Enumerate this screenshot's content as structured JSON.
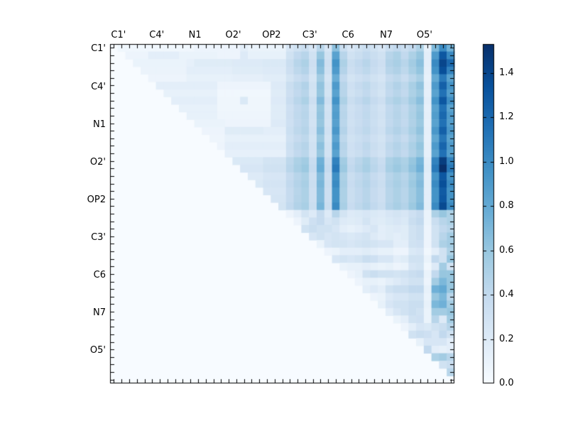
{
  "chart_data": {
    "type": "heatmap",
    "n": 45,
    "group_labels": [
      "C1'",
      "C4'",
      "N1",
      "O2'",
      "OP2",
      "C3'",
      "C6",
      "N7",
      "O5'"
    ],
    "label_positions": [
      1,
      6,
      11,
      16,
      21,
      26,
      31,
      36,
      41
    ],
    "vmin": 0.0,
    "vmax": 1.53,
    "colormap": "Blues",
    "colormap_anchors": [
      "#f7fbff",
      "#deebf7",
      "#c6dbef",
      "#9ecae1",
      "#6baed6",
      "#4292c6",
      "#2171b5",
      "#08519c",
      "#08306b"
    ],
    "frame_color": "#000000",
    "background_color": "#ffffff",
    "colorbar_ticks": [
      0.0,
      0.2,
      0.4,
      0.6,
      0.8,
      1.0,
      1.2,
      1.4
    ],
    "colorbar_tick_labels": [
      "0.0",
      "0.2",
      "0.4",
      "0.6",
      "0.8",
      "1.0",
      "1.2",
      "1.4"
    ],
    "legend_position": "right-colorbar",
    "grid": false,
    "rows": [
      {
        "start": 1,
        "values": [
          0.05,
          0.05,
          0.05,
          0.05,
          0.05,
          0.05,
          0.05,
          0.05,
          0.05,
          0.05,
          0.08,
          0.08,
          0.08,
          0.08,
          0.08,
          0.08,
          0.15,
          0.1,
          0.1,
          0.1,
          0.1,
          0.1,
          0.25,
          0.3,
          0.35,
          0.25,
          0.45,
          0.25,
          0.65,
          0.35,
          0.25,
          0.3,
          0.35,
          0.3,
          0.25,
          0.35,
          0.4,
          0.35,
          0.4,
          0.5,
          0.12,
          0.7,
          1.0,
          0.75
        ]
      },
      {
        "start": 2,
        "values": [
          0.08,
          0.08,
          0.08,
          0.15,
          0.15,
          0.15,
          0.15,
          0.1,
          0.1,
          0.1,
          0.1,
          0.1,
          0.08,
          0.08,
          0.08,
          0.2,
          0.12,
          0.12,
          0.12,
          0.12,
          0.12,
          0.3,
          0.4,
          0.45,
          0.3,
          0.6,
          0.3,
          0.85,
          0.45,
          0.3,
          0.35,
          0.4,
          0.35,
          0.3,
          0.45,
          0.5,
          0.4,
          0.5,
          0.6,
          0.15,
          0.9,
          1.3,
          1.0
        ]
      },
      {
        "start": 3,
        "values": [
          0.1,
          0.1,
          0.1,
          0.1,
          0.1,
          0.1,
          0.1,
          0.13,
          0.18,
          0.18,
          0.18,
          0.18,
          0.18,
          0.2,
          0.2,
          0.2,
          0.2,
          0.22,
          0.22,
          0.22,
          0.35,
          0.45,
          0.5,
          0.33,
          0.68,
          0.33,
          0.95,
          0.5,
          0.35,
          0.4,
          0.45,
          0.38,
          0.33,
          0.48,
          0.52,
          0.45,
          0.55,
          0.65,
          0.15,
          1.0,
          1.4,
          1.2
        ]
      },
      {
        "start": 4,
        "values": [
          0.09,
          0.09,
          0.09,
          0.09,
          0.09,
          0.09,
          0.15,
          0.15,
          0.15,
          0.15,
          0.15,
          0.15,
          0.18,
          0.18,
          0.18,
          0.18,
          0.2,
          0.2,
          0.2,
          0.33,
          0.42,
          0.47,
          0.31,
          0.64,
          0.31,
          0.9,
          0.47,
          0.33,
          0.38,
          0.42,
          0.36,
          0.31,
          0.45,
          0.49,
          0.42,
          0.52,
          0.61,
          0.14,
          0.95,
          1.35,
          1.05
        ]
      },
      {
        "start": 5,
        "values": [
          0.08,
          0.08,
          0.08,
          0.08,
          0.08,
          0.12,
          0.12,
          0.12,
          0.12,
          0.12,
          0.12,
          0.14,
          0.14,
          0.14,
          0.14,
          0.17,
          0.17,
          0.17,
          0.28,
          0.36,
          0.4,
          0.26,
          0.55,
          0.26,
          0.78,
          0.4,
          0.28,
          0.32,
          0.36,
          0.3,
          0.26,
          0.38,
          0.42,
          0.36,
          0.44,
          0.52,
          0.12,
          0.8,
          1.1,
          0.85
        ]
      },
      {
        "start": 6,
        "values": [
          0.15,
          0.15,
          0.15,
          0.15,
          0.15,
          0.15,
          0.15,
          0.15,
          0.08,
          0.08,
          0.08,
          0.08,
          0.08,
          0.08,
          0.08,
          0.2,
          0.2,
          0.35,
          0.42,
          0.48,
          0.3,
          0.62,
          0.3,
          0.9,
          0.45,
          0.32,
          0.38,
          0.42,
          0.35,
          0.3,
          0.42,
          0.48,
          0.42,
          0.52,
          0.62,
          0.14,
          0.9,
          1.25,
          0.95
        ]
      },
      {
        "start": 7,
        "values": [
          0.12,
          0.12,
          0.12,
          0.12,
          0.12,
          0.12,
          0.12,
          0.05,
          0.05,
          0.05,
          0.05,
          0.05,
          0.05,
          0.05,
          0.18,
          0.18,
          0.33,
          0.4,
          0.45,
          0.28,
          0.6,
          0.28,
          0.85,
          0.45,
          0.3,
          0.35,
          0.4,
          0.33,
          0.28,
          0.4,
          0.45,
          0.4,
          0.5,
          0.58,
          0.13,
          0.85,
          1.15,
          0.88
        ]
      },
      {
        "start": 8,
        "values": [
          0.15,
          0.15,
          0.15,
          0.15,
          0.15,
          0.15,
          0.06,
          0.06,
          0.06,
          0.22,
          0.06,
          0.06,
          0.06,
          0.2,
          0.2,
          0.36,
          0.44,
          0.5,
          0.33,
          0.68,
          0.33,
          0.95,
          0.5,
          0.35,
          0.4,
          0.45,
          0.38,
          0.33,
          0.45,
          0.5,
          0.45,
          0.55,
          0.65,
          0.15,
          0.95,
          1.3,
          0.98
        ]
      },
      {
        "start": 9,
        "values": [
          0.12,
          0.12,
          0.12,
          0.12,
          0.12,
          0.06,
          0.06,
          0.06,
          0.06,
          0.06,
          0.06,
          0.06,
          0.18,
          0.18,
          0.32,
          0.4,
          0.44,
          0.29,
          0.6,
          0.29,
          0.86,
          0.44,
          0.31,
          0.36,
          0.4,
          0.34,
          0.29,
          0.4,
          0.45,
          0.4,
          0.49,
          0.58,
          0.13,
          0.85,
          1.15,
          0.85
        ]
      },
      {
        "start": 10,
        "values": [
          0.12,
          0.12,
          0.12,
          0.12,
          0.07,
          0.07,
          0.07,
          0.07,
          0.07,
          0.07,
          0.07,
          0.18,
          0.18,
          0.33,
          0.41,
          0.45,
          0.3,
          0.62,
          0.3,
          0.88,
          0.45,
          0.32,
          0.37,
          0.41,
          0.35,
          0.3,
          0.41,
          0.46,
          0.41,
          0.5,
          0.6,
          0.14,
          0.88,
          1.2,
          0.9
        ]
      },
      {
        "start": 11,
        "values": [
          0.1,
          0.1,
          0.1,
          0.1,
          0.08,
          0.08,
          0.08,
          0.08,
          0.08,
          0.08,
          0.2,
          0.2,
          0.32,
          0.4,
          0.44,
          0.29,
          0.6,
          0.29,
          0.86,
          0.44,
          0.31,
          0.36,
          0.4,
          0.34,
          0.29,
          0.4,
          0.45,
          0.4,
          0.49,
          0.58,
          0.13,
          0.85,
          1.15,
          0.88
        ]
      },
      {
        "start": 12,
        "values": [
          0.08,
          0.08,
          0.08,
          0.18,
          0.18,
          0.18,
          0.18,
          0.18,
          0.15,
          0.15,
          0.15,
          0.34,
          0.42,
          0.46,
          0.31,
          0.65,
          0.31,
          0.92,
          0.47,
          0.33,
          0.38,
          0.42,
          0.36,
          0.31,
          0.43,
          0.48,
          0.43,
          0.52,
          0.62,
          0.14,
          0.92,
          1.25,
          0.92
        ]
      },
      {
        "start": 13,
        "values": [
          0.07,
          0.07,
          0.12,
          0.12,
          0.12,
          0.12,
          0.12,
          0.12,
          0.12,
          0.12,
          0.31,
          0.38,
          0.42,
          0.28,
          0.58,
          0.28,
          0.83,
          0.42,
          0.3,
          0.34,
          0.38,
          0.32,
          0.28,
          0.38,
          0.43,
          0.38,
          0.47,
          0.56,
          0.13,
          0.82,
          1.12,
          0.85
        ]
      },
      {
        "start": 14,
        "values": [
          0.08,
          0.15,
          0.15,
          0.15,
          0.15,
          0.15,
          0.15,
          0.15,
          0.15,
          0.34,
          0.42,
          0.46,
          0.3,
          0.64,
          0.3,
          0.9,
          0.46,
          0.32,
          0.37,
          0.42,
          0.35,
          0.3,
          0.42,
          0.47,
          0.42,
          0.51,
          0.61,
          0.14,
          0.9,
          1.22,
          0.9
        ]
      },
      {
        "start": 15,
        "values": [
          0.13,
          0.13,
          0.13,
          0.13,
          0.13,
          0.13,
          0.13,
          0.13,
          0.32,
          0.4,
          0.44,
          0.29,
          0.6,
          0.29,
          0.85,
          0.44,
          0.31,
          0.35,
          0.4,
          0.33,
          0.29,
          0.4,
          0.45,
          0.4,
          0.49,
          0.58,
          0.13,
          0.85,
          1.15,
          0.87
        ]
      },
      {
        "start": 16,
        "values": [
          0.22,
          0.22,
          0.22,
          0.22,
          0.28,
          0.28,
          0.28,
          0.42,
          0.5,
          0.55,
          0.36,
          0.75,
          0.36,
          1.05,
          0.55,
          0.38,
          0.44,
          0.5,
          0.42,
          0.36,
          0.5,
          0.55,
          0.5,
          0.6,
          0.72,
          0.17,
          1.05,
          1.45,
          1.05
        ]
      },
      {
        "start": 17,
        "values": [
          0.25,
          0.25,
          0.25,
          0.3,
          0.3,
          0.3,
          0.44,
          0.52,
          0.58,
          0.38,
          0.78,
          0.38,
          1.1,
          0.58,
          0.4,
          0.46,
          0.52,
          0.44,
          0.38,
          0.52,
          0.58,
          0.52,
          0.63,
          0.75,
          0.18,
          1.1,
          1.53,
          1.1
        ]
      },
      {
        "start": 18,
        "values": [
          0.2,
          0.2,
          0.25,
          0.25,
          0.25,
          0.38,
          0.45,
          0.5,
          0.33,
          0.68,
          0.33,
          0.97,
          0.5,
          0.35,
          0.4,
          0.45,
          0.38,
          0.33,
          0.45,
          0.5,
          0.45,
          0.55,
          0.65,
          0.15,
          0.95,
          1.3,
          0.95
        ]
      },
      {
        "start": 19,
        "values": [
          0.22,
          0.27,
          0.27,
          0.27,
          0.4,
          0.47,
          0.52,
          0.35,
          0.71,
          0.35,
          1.0,
          0.52,
          0.37,
          0.42,
          0.47,
          0.4,
          0.35,
          0.47,
          0.52,
          0.47,
          0.58,
          0.68,
          0.16,
          1.0,
          1.35,
          1.0
        ]
      },
      {
        "start": 20,
        "values": [
          0.25,
          0.25,
          0.25,
          0.38,
          0.45,
          0.5,
          0.33,
          0.68,
          0.33,
          0.95,
          0.5,
          0.35,
          0.4,
          0.45,
          0.38,
          0.33,
          0.45,
          0.5,
          0.45,
          0.55,
          0.65,
          0.15,
          0.95,
          1.28,
          0.95
        ]
      },
      {
        "start": 21,
        "values": [
          0.26,
          0.26,
          0.38,
          0.46,
          0.5,
          0.33,
          0.68,
          0.33,
          0.95,
          0.5,
          0.35,
          0.4,
          0.45,
          0.38,
          0.33,
          0.45,
          0.5,
          0.45,
          0.55,
          0.65,
          0.15,
          0.95,
          1.3,
          0.95
        ]
      },
      {
        "start": 22,
        "values": [
          0.28,
          0.4,
          0.48,
          0.52,
          0.35,
          0.72,
          0.35,
          1.0,
          0.52,
          0.37,
          0.42,
          0.47,
          0.4,
          0.35,
          0.47,
          0.52,
          0.47,
          0.58,
          0.68,
          0.16,
          1.0,
          1.38,
          1.0
        ]
      },
      {
        "start": 23,
        "values": [
          0.08,
          0.15,
          0.28,
          0.2,
          0.38,
          0.2,
          0.45,
          0.28,
          0.2,
          0.22,
          0.25,
          0.22,
          0.2,
          0.25,
          0.28,
          0.25,
          0.32,
          0.38,
          0.1,
          0.5,
          0.6,
          0.5
        ]
      },
      {
        "start": 24,
        "values": [
          0.08,
          0.18,
          0.32,
          0.38,
          0.25,
          0.3,
          0.2,
          0.18,
          0.2,
          0.28,
          0.2,
          0.18,
          0.22,
          0.25,
          0.22,
          0.35,
          0.4,
          0.1,
          0.35,
          0.45,
          0.5
        ]
      },
      {
        "start": 25,
        "values": [
          0.3,
          0.35,
          0.3,
          0.3,
          0.25,
          0.15,
          0.12,
          0.15,
          0.2,
          0.25,
          0.15,
          0.18,
          0.2,
          0.18,
          0.3,
          0.35,
          0.08,
          0.3,
          0.4,
          0.45
        ]
      },
      {
        "start": 26,
        "values": [
          0.25,
          0.3,
          0.25,
          0.28,
          0.25,
          0.22,
          0.25,
          0.28,
          0.2,
          0.15,
          0.18,
          0.15,
          0.18,
          0.3,
          0.35,
          0.08,
          0.3,
          0.45,
          0.55
        ]
      },
      {
        "start": 27,
        "values": [
          0.1,
          0.25,
          0.28,
          0.28,
          0.25,
          0.28,
          0.3,
          0.28,
          0.25,
          0.25,
          0.15,
          0.15,
          0.3,
          0.32,
          0.08,
          0.3,
          0.5,
          0.55
        ]
      },
      {
        "start": 28,
        "values": [
          0.08,
          0.1,
          0.15,
          0.15,
          0.15,
          0.18,
          0.15,
          0.12,
          0.12,
          0.08,
          0.08,
          0.22,
          0.25,
          0.05,
          0.15,
          0.3,
          0.5
        ]
      },
      {
        "start": 29,
        "values": [
          0.25,
          0.28,
          0.25,
          0.28,
          0.35,
          0.32,
          0.25,
          0.25,
          0.15,
          0.18,
          0.3,
          0.3,
          0.1,
          0.4,
          0.3,
          0.6
        ]
      },
      {
        "start": 30,
        "values": [
          0.1,
          0.12,
          0.12,
          0.15,
          0.12,
          0.1,
          0.12,
          0.08,
          0.1,
          0.25,
          0.28,
          0.05,
          0.2,
          0.55,
          0.3
        ]
      },
      {
        "start": 31,
        "values": [
          0.08,
          0.12,
          0.3,
          0.35,
          0.3,
          0.3,
          0.28,
          0.3,
          0.35,
          0.38,
          0.1,
          0.4,
          0.6,
          0.6
        ]
      },
      {
        "start": 32,
        "values": [
          0.08,
          0.12,
          0.12,
          0.1,
          0.15,
          0.2,
          0.25,
          0.3,
          0.3,
          0.08,
          0.55,
          0.7,
          0.6
        ]
      },
      {
        "start": 33,
        "values": [
          0.15,
          0.2,
          0.15,
          0.3,
          0.35,
          0.35,
          0.4,
          0.4,
          0.12,
          0.75,
          0.8,
          0.6
        ]
      },
      {
        "start": 34,
        "values": [
          0.08,
          0.1,
          0.2,
          0.25,
          0.25,
          0.3,
          0.3,
          0.1,
          0.6,
          0.7,
          0.45
        ]
      },
      {
        "start": 35,
        "values": [
          0.12,
          0.25,
          0.3,
          0.3,
          0.35,
          0.35,
          0.12,
          0.7,
          0.75,
          0.55
        ]
      },
      {
        "start": 36,
        "values": [
          0.15,
          0.25,
          0.3,
          0.35,
          0.3,
          0.1,
          0.55,
          0.55,
          0.6
        ]
      },
      {
        "start": 37,
        "values": [
          0.1,
          0.15,
          0.3,
          0.32,
          0.1,
          0.45,
          0.2,
          0.55
        ]
      },
      {
        "start": 38,
        "values": [
          0.08,
          0.15,
          0.25,
          0.22,
          0.3,
          0.35,
          0.45
        ]
      },
      {
        "start": 39,
        "values": [
          0.3,
          0.35,
          0.32,
          0.25,
          0.4,
          0.3
        ]
      },
      {
        "start": 40,
        "values": [
          0.12,
          0.25,
          0.25,
          0.25,
          0.15
        ]
      },
      {
        "start": 41,
        "values": [
          0.4,
          0.15,
          0.12,
          0.15
        ]
      },
      {
        "start": 42,
        "values": [
          0.5,
          0.55,
          0.45
        ]
      },
      {
        "start": 43,
        "values": [
          0.3,
          0.35
        ]
      },
      {
        "start": 44,
        "values": [
          0.45
        ]
      },
      {
        "start": 45,
        "values": []
      }
    ]
  }
}
